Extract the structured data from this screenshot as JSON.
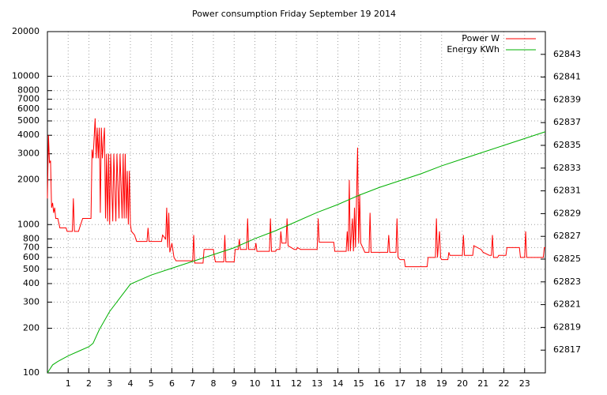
{
  "chart_data": {
    "type": "line",
    "title": "Power consumption Friday September 19 2014",
    "xlim": [
      0,
      24
    ],
    "xticks": [
      1,
      2,
      3,
      4,
      5,
      6,
      7,
      8,
      9,
      10,
      11,
      12,
      13,
      14,
      15,
      16,
      17,
      18,
      19,
      20,
      21,
      22,
      23
    ],
    "ylim": [
      100,
      20000
    ],
    "y_log": true,
    "yticks": [
      100,
      200,
      300,
      400,
      500,
      600,
      700,
      800,
      1000,
      2000,
      3000,
      4000,
      5000,
      6000,
      7000,
      8000,
      10000,
      20000
    ],
    "y2lim": [
      62815,
      62845
    ],
    "y2ticks": [
      62817,
      62819,
      62821,
      62823,
      62825,
      62827,
      62829,
      62831,
      62833,
      62835,
      62837,
      62839,
      62841,
      62843
    ],
    "grid": true,
    "legend": "top-right",
    "series": [
      {
        "name": "Power W",
        "color": "#ff0000",
        "x": [
          0,
          0.05,
          0.1,
          0.15,
          0.2,
          0.25,
          0.3,
          0.35,
          0.4,
          0.5,
          0.6,
          0.9,
          0.95,
          1.2,
          1.25,
          1.3,
          1.5,
          1.55,
          1.7,
          2.1,
          2.15,
          2.2,
          2.3,
          2.35,
          2.4,
          2.45,
          2.5,
          2.55,
          2.6,
          2.65,
          2.75,
          2.8,
          2.85,
          2.9,
          2.95,
          3.0,
          3.05,
          3.15,
          3.2,
          3.3,
          3.35,
          3.45,
          3.5,
          3.6,
          3.65,
          3.7,
          3.75,
          3.8,
          3.85,
          3.9,
          3.95,
          4.0,
          4.05,
          4.2,
          4.3,
          4.8,
          4.85,
          4.9,
          5.5,
          5.55,
          5.7,
          5.75,
          5.8,
          5.85,
          5.9,
          6.0,
          6.1,
          6.2,
          7.0,
          7.05,
          7.1,
          7.5,
          7.55,
          8.0,
          8.05,
          8.1,
          8.5,
          8.55,
          8.6,
          9.0,
          9.05,
          9.2,
          9.25,
          9.3,
          9.6,
          9.65,
          9.7,
          10.0,
          10.05,
          10.1,
          10.7,
          10.75,
          10.8,
          11.0,
          11.05,
          11.2,
          11.25,
          11.3,
          11.5,
          11.55,
          11.6,
          11.9,
          12.0,
          12.05,
          12.2,
          13.0,
          13.05,
          13.1,
          13.8,
          13.85,
          14.4,
          14.45,
          14.5,
          14.55,
          14.6,
          14.7,
          14.75,
          14.8,
          14.85,
          14.95,
          15.0,
          15.05,
          15.1,
          15.3,
          15.5,
          15.55,
          15.6,
          16.4,
          16.45,
          16.5,
          16.8,
          16.85,
          16.9,
          17.0,
          17.2,
          17.25,
          18.3,
          18.35,
          18.7,
          18.75,
          18.8,
          18.9,
          18.95,
          19.0,
          19.3,
          19.35,
          19.4,
          20.0,
          20.05,
          20.1,
          20.5,
          20.55,
          20.9,
          21.0,
          21.3,
          21.4,
          21.45,
          21.5,
          21.7,
          21.75,
          22.1,
          22.15,
          22.75,
          22.8,
          23.0,
          23.05,
          23.1,
          23.9,
          23.95,
          24
        ],
        "values": [
          1500,
          4000,
          2600,
          2700,
          1300,
          1400,
          1200,
          1300,
          1100,
          1100,
          950,
          950,
          900,
          900,
          1500,
          900,
          900,
          950,
          1100,
          1100,
          3200,
          2800,
          5200,
          2800,
          4500,
          2800,
          4500,
          1200,
          4500,
          2800,
          4500,
          1100,
          3000,
          1050,
          3000,
          1000,
          3000,
          1050,
          3000,
          1050,
          3000,
          1100,
          3000,
          1100,
          3000,
          1100,
          3000,
          1100,
          2300,
          1000,
          2300,
          1000,
          900,
          850,
          770,
          770,
          950,
          770,
          770,
          850,
          800,
          1300,
          700,
          1200,
          650,
          750,
          600,
          570,
          570,
          850,
          550,
          550,
          680,
          680,
          600,
          560,
          560,
          850,
          560,
          560,
          680,
          680,
          800,
          680,
          680,
          1100,
          680,
          680,
          750,
          660,
          660,
          1100,
          660,
          660,
          680,
          680,
          900,
          750,
          750,
          1100,
          720,
          680,
          680,
          700,
          680,
          680,
          1100,
          760,
          760,
          660,
          660,
          900,
          660,
          2000,
          660,
          1100,
          660,
          1300,
          700,
          3300,
          750,
          1600,
          750,
          650,
          650,
          1200,
          650,
          650,
          850,
          650,
          650,
          1100,
          600,
          580,
          580,
          520,
          520,
          600,
          600,
          1100,
          600,
          900,
          600,
          580,
          580,
          650,
          620,
          620,
          850,
          620,
          620,
          720,
          680,
          650,
          620,
          620,
          850,
          600,
          600,
          620,
          620,
          700,
          700,
          600,
          600,
          900,
          600,
          600,
          700,
          700
        ]
      },
      {
        "name": "Energy KWh",
        "color": "#00b000",
        "axis": "y2",
        "x": [
          0,
          0.25,
          0.5,
          1,
          1.5,
          2,
          2.2,
          2.5,
          3,
          3.5,
          4,
          5,
          6,
          7,
          8,
          9,
          10,
          11,
          12,
          13,
          14,
          15,
          16,
          17,
          18,
          19,
          20,
          21,
          22,
          23,
          24
        ],
        "values": [
          62815,
          62815.7,
          62816,
          62816.5,
          62816.9,
          62817.3,
          62817.6,
          62818.8,
          62820.4,
          62821.6,
          62822.8,
          62823.6,
          62824.2,
          62824.8,
          62825.4,
          62826,
          62826.8,
          62827.5,
          62828.3,
          62829.1,
          62829.8,
          62830.6,
          62831.3,
          62831.9,
          62832.5,
          62833.2,
          62833.8,
          62834.4,
          62835,
          62835.6,
          62836.2
        ]
      }
    ]
  }
}
